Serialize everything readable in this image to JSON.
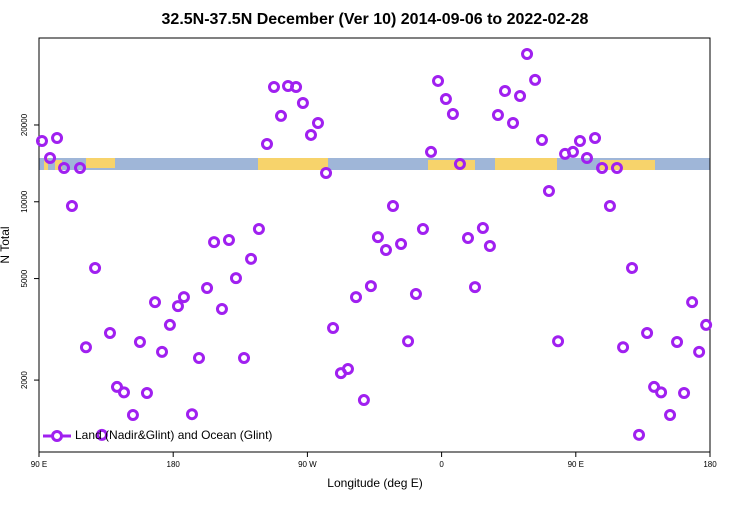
{
  "chart_data": {
    "type": "scatter",
    "title": "32.5N-37.5N December (Ver 10)   2014-09-06 to 2022-02-28",
    "x_label": "Longitude (deg E)",
    "y_label": "N Total",
    "log_y": true,
    "legend": "bottom-left",
    "xlim": [
      90,
      540
    ],
    "ylim": [
      1045,
      43850
    ],
    "xticks": [
      {
        "value": 90,
        "label": "90 E"
      },
      {
        "value": 180,
        "label": "180"
      },
      {
        "value": 270,
        "label": "90 W"
      },
      {
        "value": 360,
        "label": "0"
      },
      {
        "value": 450,
        "label": "90 E"
      },
      {
        "value": 540,
        "label": "180"
      }
    ],
    "yticks": [
      2000,
      5000,
      10000,
      20000
    ],
    "series": [
      {
        "name": "Land (Nadir&Glint) and Ocean (Glint)",
        "color": "#a020f0",
        "x": [
          92.0,
          97.4,
          102.1,
          106.8,
          112.1,
          117.5,
          121.5,
          127.6,
          132.2,
          137.6,
          142.3,
          147.0,
          153.0,
          157.7,
          162.4,
          167.8,
          172.5,
          177.8,
          183.2,
          187.2,
          192.6,
          197.3,
          202.7,
          207.4,
          212.7,
          217.4,
          222.1,
          227.5,
          232.2,
          237.5,
          242.9,
          247.6,
          252.3,
          257.0,
          262.4,
          267.0,
          272.4,
          277.1,
          282.5,
          287.2,
          292.5,
          297.2,
          302.6,
          307.9,
          312.6,
          317.3,
          322.7,
          327.4,
          332.8,
          337.5,
          342.8,
          347.5,
          352.9,
          357.6,
          362.9,
          367.6,
          372.3,
          377.7,
          382.4,
          387.7,
          392.4,
          397.8,
          402.5,
          407.9,
          412.6,
          417.3,
          422.7,
          427.3,
          432.0,
          438.1,
          442.8,
          448.1,
          452.8,
          457.5,
          462.9,
          467.6,
          472.9,
          477.6,
          481.7,
          487.7,
          492.4,
          497.8,
          502.5,
          507.2,
          513.2,
          517.9,
          522.6,
          528.0,
          532.7,
          537.4
        ],
        "values": [
          17310,
          14840,
          17780,
          13570,
          9630,
          13570,
          2690,
          5500,
          1220,
          3060,
          1880,
          1790,
          1460,
          2820,
          1780,
          4040,
          2580,
          3290,
          3900,
          4230,
          1470,
          2440,
          4590,
          6950,
          3800,
          7080,
          5020,
          2440,
          5970,
          7820,
          16850,
          28190,
          21700,
          28440,
          28190,
          24400,
          18280,
          20360,
          12970,
          3200,
          2130,
          2210,
          4230,
          1670,
          4670,
          7270,
          6470,
          9630,
          6830,
          2840,
          4350,
          7820,
          15680,
          29760,
          25290,
          22090,
          14060,
          7210,
          4630,
          7890,
          6710,
          21890,
          27190,
          20360,
          25990,
          37960,
          30040,
          17470,
          11020,
          2840,
          15400,
          15680,
          17310,
          14840,
          17780,
          13570,
          9630,
          13570,
          2690,
          5500,
          1220,
          3060,
          1880,
          1790,
          1460,
          2820,
          1780,
          4040,
          2580,
          3290
        ]
      }
    ]
  }
}
